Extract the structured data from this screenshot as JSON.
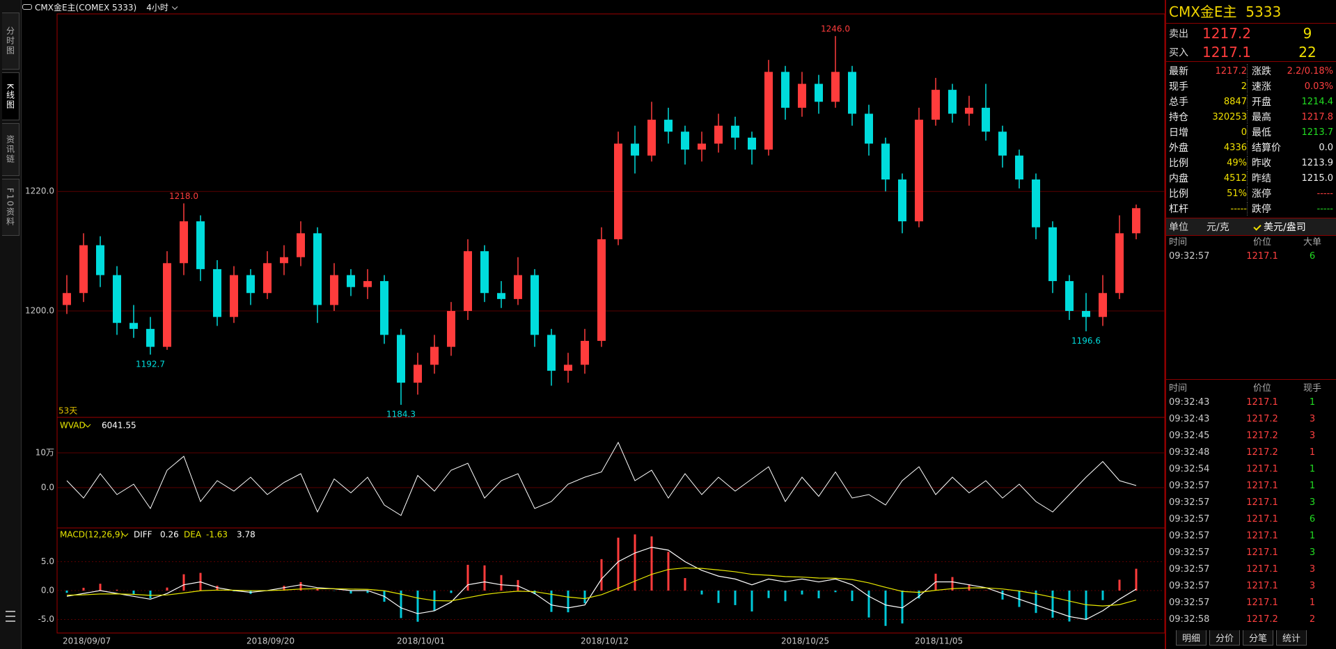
{
  "toolbar": {
    "symbol": "CMX金E主(COMEX 5333)",
    "period": "4小时"
  },
  "sidebar": [
    "分时图",
    "K线图",
    "资讯链",
    "F10资料"
  ],
  "chart_data": [
    {
      "type": "candlestick",
      "up_color": "#ff3c3c",
      "down_color": "#00dcdc",
      "categories": [
        "2018/09/07",
        null,
        null,
        null,
        null,
        null,
        null,
        null,
        null,
        null,
        null,
        "2018/09/20",
        null,
        null,
        null,
        null,
        null,
        null,
        null,
        null,
        "2018/10/01",
        null,
        null,
        null,
        null,
        null,
        null,
        null,
        null,
        null,
        null,
        "2018/10/12",
        null,
        null,
        null,
        null,
        null,
        null,
        null,
        null,
        null,
        null,
        null,
        "2018/10/25",
        null,
        null,
        null,
        null,
        null,
        null,
        null,
        "2018/11/05",
        null,
        null,
        null,
        null,
        null,
        null,
        null,
        null,
        null,
        null,
        null,
        null,
        null
      ],
      "values": [
        [
          1201,
          1206,
          1199.5,
          1203
        ],
        [
          1203,
          1213,
          1201.5,
          1211
        ],
        [
          1211,
          1212.5,
          1204,
          1206
        ],
        [
          1206,
          1207.5,
          1196,
          1198
        ],
        [
          1198,
          1201,
          1195.5,
          1197
        ],
        [
          1197,
          1199,
          1192.7,
          1194
        ],
        [
          1194,
          1210,
          1193.5,
          1208
        ],
        [
          1208,
          1218.0,
          1206,
          1215
        ],
        [
          1215,
          1216,
          1205,
          1207
        ],
        [
          1207,
          1208.5,
          1197.5,
          1199
        ],
        [
          1199,
          1207.5,
          1198,
          1206
        ],
        [
          1206,
          1207,
          1201,
          1203
        ],
        [
          1203,
          1210,
          1202,
          1208
        ],
        [
          1208,
          1211,
          1206,
          1209
        ],
        [
          1209,
          1215,
          1207.5,
          1213
        ],
        [
          1213,
          1214,
          1198,
          1201
        ],
        [
          1201,
          1208,
          1200,
          1206
        ],
        [
          1206,
          1207,
          1202.5,
          1204
        ],
        [
          1204,
          1207,
          1202,
          1205
        ],
        [
          1205,
          1206,
          1194.5,
          1196
        ],
        [
          1196,
          1197,
          1184.3,
          1188
        ],
        [
          1188,
          1193,
          1186,
          1191
        ],
        [
          1191,
          1196,
          1189.5,
          1194
        ],
        [
          1194,
          1201.5,
          1192.5,
          1200
        ],
        [
          1200,
          1212,
          1198.5,
          1210
        ],
        [
          1210,
          1211,
          1201.5,
          1203
        ],
        [
          1203,
          1205,
          1200.5,
          1202
        ],
        [
          1202,
          1209,
          1201,
          1206
        ],
        [
          1206,
          1207,
          1194,
          1196
        ],
        [
          1196,
          1197,
          1187.5,
          1190
        ],
        [
          1190,
          1193,
          1188,
          1191
        ],
        [
          1191,
          1197,
          1189.5,
          1195
        ],
        [
          1195,
          1214,
          1194,
          1212
        ],
        [
          1212,
          1230,
          1211,
          1228
        ],
        [
          1228,
          1231,
          1223,
          1226
        ],
        [
          1226,
          1235,
          1225,
          1232
        ],
        [
          1232,
          1234,
          1228,
          1230
        ],
        [
          1230,
          1231,
          1224.5,
          1227
        ],
        [
          1227,
          1230,
          1225,
          1228
        ],
        [
          1228,
          1233,
          1226.5,
          1231
        ],
        [
          1231,
          1232.5,
          1227,
          1229
        ],
        [
          1229,
          1230,
          1224.5,
          1227
        ],
        [
          1227,
          1242,
          1226,
          1240
        ],
        [
          1240,
          1241,
          1232,
          1234
        ],
        [
          1234,
          1240,
          1232.5,
          1238
        ],
        [
          1238,
          1239.5,
          1233,
          1235
        ],
        [
          1235,
          1246.0,
          1234,
          1240
        ],
        [
          1240,
          1241,
          1231,
          1233
        ],
        [
          1233,
          1234.5,
          1226,
          1228
        ],
        [
          1228,
          1229,
          1220,
          1222
        ],
        [
          1222,
          1223,
          1213,
          1215
        ],
        [
          1215,
          1234,
          1214,
          1232
        ],
        [
          1232,
          1239,
          1231,
          1237
        ],
        [
          1237,
          1238,
          1231.5,
          1233
        ],
        [
          1233,
          1236,
          1231,
          1234
        ],
        [
          1234,
          1238,
          1228.5,
          1230
        ],
        [
          1230,
          1231,
          1224,
          1226
        ],
        [
          1226,
          1227,
          1220.5,
          1222
        ],
        [
          1222,
          1223,
          1212,
          1214
        ],
        [
          1214,
          1215,
          1203,
          1205
        ],
        [
          1205,
          1206,
          1198.5,
          1200
        ],
        [
          1200,
          1203,
          1196.6,
          1199
        ],
        [
          1199,
          1206,
          1197.5,
          1203
        ],
        [
          1203,
          1216,
          1202,
          1213
        ],
        [
          1213,
          1217.8,
          1212,
          1217.2
        ]
      ],
      "ylim": [
        1182.2,
        1249.7
      ],
      "yticks": [
        {
          "value": 1200,
          "label": "1200.0"
        },
        {
          "value": 1220,
          "label": "1220.0"
        }
      ],
      "annotations": [
        {
          "value": 1218.0,
          "label": "1218.0"
        },
        {
          "value": 1192.7,
          "label": "1192.7"
        },
        {
          "value": 1184.3,
          "label": "1184.3"
        },
        {
          "value": 1246.0,
          "label": "1246.0"
        },
        {
          "value": 1196.6,
          "label": "1196.6"
        }
      ],
      "footnote": "53天"
    },
    {
      "type": "line",
      "title": "WVAD",
      "color": "#ffffff",
      "values": [
        20000,
        -30000,
        40000,
        -20000,
        10000,
        -60000,
        50000,
        90000,
        -40000,
        20000,
        -10000,
        30000,
        -20000,
        15000,
        40000,
        -70000,
        25000,
        -15000,
        30000,
        -50000,
        -80000,
        35000,
        -10000,
        50000,
        70000,
        -30000,
        20000,
        40000,
        -60000,
        -40000,
        10000,
        30000,
        45000,
        130000,
        20000,
        50000,
        -30000,
        40000,
        -20000,
        30000,
        -10000,
        25000,
        60000,
        -40000,
        30000,
        -25000,
        45000,
        -30000,
        -20000,
        -50000,
        20000,
        60000,
        -20000,
        30000,
        -15000,
        20000,
        -30000,
        10000,
        -40000,
        -70000,
        -20000,
        30000,
        75000,
        20000,
        6041.55
      ],
      "ylim": [
        -116000,
        202000
      ],
      "yticks": [
        {
          "value": 0,
          "label": "0.0"
        },
        {
          "value": 100000,
          "label": "10万"
        }
      ]
    },
    {
      "type": "macd",
      "title": "MACD(12,26,9)",
      "series": [
        {
          "name": "DIFF",
          "color": "#ffffff",
          "values": [
            -1,
            -0.5,
            0,
            -0.5,
            -1,
            -1.5,
            -0.5,
            1,
            1.5,
            0.5,
            0,
            -0.3,
            0,
            0.5,
            1,
            0.5,
            0.3,
            0,
            0,
            -1,
            -3,
            -4,
            -3.5,
            -2,
            1,
            1.5,
            1,
            0.8,
            -0.5,
            -2.5,
            -3,
            -2.5,
            2,
            5,
            6.5,
            7.5,
            7,
            5,
            3.5,
            2.5,
            2,
            1,
            2,
            1.5,
            2,
            1.5,
            2,
            1,
            -1,
            -2.5,
            -3,
            -1,
            1.5,
            1.5,
            1,
            0.5,
            -0.5,
            -1.5,
            -2.5,
            -3.5,
            -4.5,
            -5,
            -3.5,
            -1.5,
            0.26
          ]
        },
        {
          "name": "DEA",
          "color": "#e8e800",
          "values": [
            -0.8,
            -0.74,
            -0.59,
            -0.57,
            -0.66,
            -0.83,
            -0.76,
            -0.41,
            -0.03,
            0.08,
            0.06,
            -0.01,
            -0.01,
            0.09,
            0.27,
            0.32,
            0.32,
            0.26,
            0.21,
            -0.03,
            -0.62,
            -1.3,
            -1.74,
            -1.79,
            -1.23,
            -0.68,
            -0.34,
            -0.11,
            -0.19,
            -0.65,
            -1.12,
            -1.4,
            -0.72,
            0.42,
            1.64,
            2.81,
            3.65,
            3.92,
            3.84,
            3.57,
            3.26,
            2.81,
            2.65,
            2.42,
            2.34,
            2.17,
            2.14,
            1.91,
            1.33,
            0.56,
            -0.15,
            -0.32,
            0.04,
            0.33,
            0.46,
            0.47,
            0.28,
            -0.08,
            -0.56,
            -1.15,
            -1.82,
            -2.46,
            -2.67,
            -2.44,
            -1.63
          ]
        },
        {
          "up_color": "#ff3c3c",
          "down_color": "#00c8d8",
          "values": [
            -0.4,
            0.48,
            1.18,
            0.14,
            -0.68,
            -1.34,
            0.52,
            2.82,
            3.06,
            0.84,
            -0.12,
            -0.58,
            0.02,
            0.82,
            1.46,
            0.36,
            -0.04,
            -0.52,
            -0.42,
            -1.94,
            -4.76,
            -5.4,
            -3.52,
            -0.42,
            4.46,
            4.36,
            2.68,
            1.82,
            -0.62,
            -3.7,
            -3.76,
            -2.2,
            5.44,
            9.16,
            9.72,
            9.38,
            6.7,
            2.16,
            -0.68,
            -2.14,
            -2.52,
            -3.62,
            -1.3,
            -1.84,
            -0.68,
            -1.34,
            -0.28,
            -1.82,
            -4.66,
            -6.12,
            -5.7,
            -1.36,
            2.92,
            2.34,
            1.08,
            0.06,
            -1.56,
            -2.84,
            -3.88,
            -4.7,
            -5.36,
            -5.08,
            -1.66,
            1.88,
            3.78
          ]
        }
      ],
      "ylim": [
        -7.35,
        10.84
      ],
      "yticks": [
        {
          "value": -5,
          "label": "-5.0"
        },
        {
          "value": 0,
          "label": "0.0"
        },
        {
          "value": 5,
          "label": "5.0"
        }
      ]
    }
  ],
  "quote": {
    "title": "CMX金E主  5333",
    "ask": [
      "卖出",
      "1217.2",
      "9"
    ],
    "bid": [
      "买入",
      "1217.1",
      "22"
    ],
    "stats": [
      [
        "最新",
        "1217.2",
        "涨跌",
        "2.2/0.18%"
      ],
      [
        "现手",
        "2",
        "速涨",
        "0.03%"
      ],
      [
        "总手",
        "8847",
        "开盘",
        "1214.4"
      ],
      [
        "持仓",
        "320253",
        "最高",
        "1217.8"
      ],
      [
        "日增",
        "0",
        "最低",
        "1213.7"
      ],
      [
        "外盘",
        "4336",
        "结算价",
        "0.0"
      ],
      [
        "比例",
        "49%",
        "昨收",
        "1213.9"
      ],
      [
        "内盘",
        "4512",
        "昨结",
        "1215.0"
      ],
      [
        "比例",
        "51%",
        "涨停",
        "-----"
      ],
      [
        "杠杆",
        "-----",
        "跌停",
        "-----"
      ]
    ],
    "unit": [
      "单位",
      "元/克",
      "美元/盎司"
    ]
  },
  "big_orders": {
    "headers": [
      "时间",
      "价位",
      "大单"
    ],
    "rows": [
      [
        "09:32:57",
        "1217.1",
        "6",
        "#22dd22"
      ]
    ]
  },
  "ticks": {
    "headers": [
      "时间",
      "价位",
      "现手"
    ],
    "rows": [
      [
        "09:32:43",
        "1217.1",
        "1",
        "#22dd22"
      ],
      [
        "09:32:43",
        "1217.2",
        "3",
        "#ff4040"
      ],
      [
        "09:32:45",
        "1217.2",
        "3",
        "#ff4040"
      ],
      [
        "09:32:48",
        "1217.2",
        "1",
        "#ff4040"
      ],
      [
        "09:32:54",
        "1217.1",
        "1",
        "#22dd22"
      ],
      [
        "09:32:57",
        "1217.1",
        "1",
        "#22dd22"
      ],
      [
        "09:32:57",
        "1217.1",
        "3",
        "#22dd22"
      ],
      [
        "09:32:57",
        "1217.1",
        "6",
        "#22dd22"
      ],
      [
        "09:32:57",
        "1217.1",
        "1",
        "#22dd22"
      ],
      [
        "09:32:57",
        "1217.1",
        "3",
        "#22dd22"
      ],
      [
        "09:32:57",
        "1217.1",
        "3",
        "#ff4040"
      ],
      [
        "09:32:57",
        "1217.1",
        "3",
        "#ff4040"
      ],
      [
        "09:32:57",
        "1217.1",
        "1",
        "#ff4040"
      ],
      [
        "09:32:58",
        "1217.2",
        "2",
        "#ff4040"
      ]
    ]
  },
  "tabs": [
    "明细",
    "分价",
    "分笔",
    "统计"
  ]
}
